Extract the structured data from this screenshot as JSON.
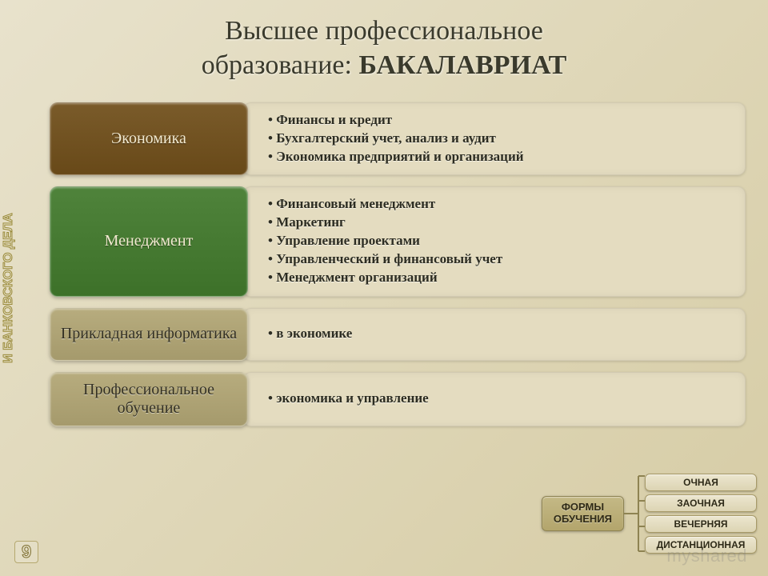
{
  "title": {
    "line1": "Высшее профессиональное",
    "line2a": "образование: ",
    "line2b": "БАКАЛАВРИАТ"
  },
  "sidebar_label": "СИБИРСКАЯ АКАДЕМИЯ ФИНАНСОВ\nИ БАНКОВСКОГО ДЕЛА",
  "page_number": "9",
  "watermark": "myshared",
  "rows": [
    {
      "tab": "Экономика",
      "tab_color": "#7a5b2a",
      "items": [
        "Финансы и кредит",
        "Бухгалтерский учет, анализ и аудит",
        "Экономика предприятий и организаций"
      ]
    },
    {
      "tab": "Менеджмент",
      "tab_color": "#4f833b",
      "items": [
        "Финансовый менеджмент",
        "Маркетинг",
        "Управление проектами",
        "Управленческий и финансовый учет",
        "Менеджмент организаций"
      ]
    },
    {
      "tab": "Прикладная информатика",
      "tab_color": "#b7ac7e",
      "items": [
        " в экономике"
      ]
    },
    {
      "tab": "Профессиональное обучение",
      "tab_color": "#b7ac7e",
      "items": [
        "экономика и управление"
      ]
    }
  ],
  "forms": {
    "root": "ФОРМЫ\nОБУЧЕНИЯ",
    "items": [
      "ОЧНАЯ",
      "ЗАОЧНАЯ",
      "ВЕЧЕРНЯЯ",
      "ДИСТАНЦИОННАЯ"
    ]
  },
  "style": {
    "tab_light_text": "#f2ead0",
    "tab_dark_text": "#333023",
    "panel_bg": "#e4dcc0"
  }
}
